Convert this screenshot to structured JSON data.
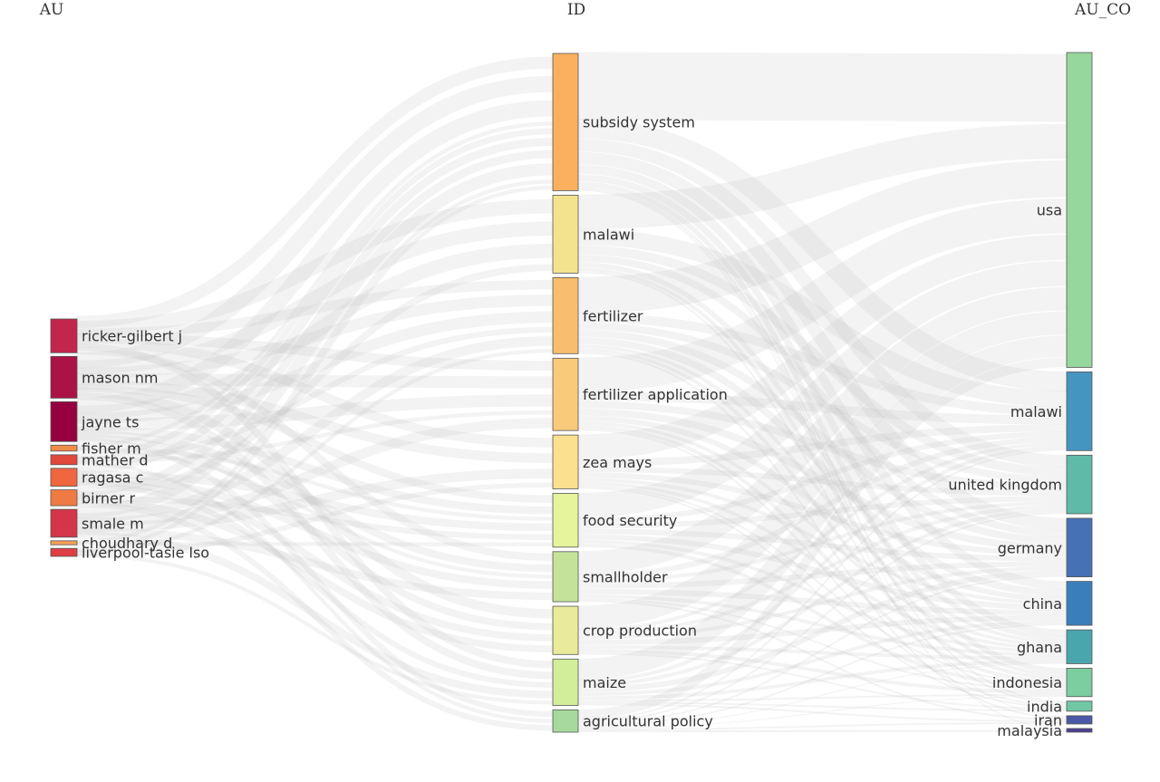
{
  "columns": [
    {
      "key": "au",
      "title": "AU"
    },
    {
      "key": "id",
      "title": "ID"
    },
    {
      "key": "au_co",
      "title": "AU_CO"
    }
  ],
  "nodes": {
    "au": [
      {
        "label": "ricker-gilbert j",
        "weight": 34,
        "color": "#c2264b"
      },
      {
        "label": "mason nm",
        "weight": 42,
        "color": "#ab1245"
      },
      {
        "label": "jayne ts",
        "weight": 40,
        "color": "#96003f"
      },
      {
        "label": "fisher m",
        "weight": 6,
        "color": "#f08c4a"
      },
      {
        "label": "mather d",
        "weight": 10,
        "color": "#e0483a"
      },
      {
        "label": "ragasa c",
        "weight": 18,
        "color": "#f0663f"
      },
      {
        "label": "birner r",
        "weight": 16,
        "color": "#f07a44"
      },
      {
        "label": "smale m",
        "weight": 28,
        "color": "#d43549"
      },
      {
        "label": "choudhary d",
        "weight": 4,
        "color": "#f5a05a"
      },
      {
        "label": "liverpool-tasie lso",
        "weight": 8,
        "color": "#de3e44"
      }
    ],
    "id": [
      {
        "label": "subsidy system",
        "weight": 148,
        "color": "#fbb05f"
      },
      {
        "label": "malawi",
        "weight": 84,
        "color": "#f3e38f"
      },
      {
        "label": "fertilizer",
        "weight": 82,
        "color": "#f8be6e"
      },
      {
        "label": "fertilizer application",
        "weight": 78,
        "color": "#f9ca7a"
      },
      {
        "label": "zea mays",
        "weight": 58,
        "color": "#fbe08f"
      },
      {
        "label": "food security",
        "weight": 58,
        "color": "#e6f49b"
      },
      {
        "label": "smallholder",
        "weight": 54,
        "color": "#c4e399"
      },
      {
        "label": "crop production",
        "weight": 52,
        "color": "#eaeb9a"
      },
      {
        "label": "maize",
        "weight": 50,
        "color": "#d3ee9a"
      },
      {
        "label": "agricultural policy",
        "weight": 24,
        "color": "#a7d99c"
      }
    ],
    "au_co": [
      {
        "label": "usa",
        "weight": 344,
        "color": "#96d79d"
      },
      {
        "label": "malawi",
        "weight": 86,
        "color": "#4495c0"
      },
      {
        "label": "united kingdom",
        "weight": 64,
        "color": "#5fbba7"
      },
      {
        "label": "germany",
        "weight": 64,
        "color": "#4671b5"
      },
      {
        "label": "china",
        "weight": 48,
        "color": "#3a7fbc"
      },
      {
        "label": "ghana",
        "weight": 37,
        "color": "#4aa6ad"
      },
      {
        "label": "indonesia",
        "weight": 31,
        "color": "#7ccda0"
      },
      {
        "label": "india",
        "weight": 11,
        "color": "#70c7a4"
      },
      {
        "label": "iran",
        "weight": 9,
        "color": "#4a58a6"
      },
      {
        "label": "malaysia",
        "weight": 4,
        "color": "#4a3f93"
      }
    ]
  },
  "links_au_id": [
    [
      0,
      0,
      6
    ],
    [
      0,
      1,
      6
    ],
    [
      0,
      2,
      5
    ],
    [
      0,
      3,
      5
    ],
    [
      0,
      4,
      4
    ],
    [
      0,
      8,
      4
    ],
    [
      0,
      6,
      4
    ],
    [
      1,
      0,
      8
    ],
    [
      1,
      1,
      6
    ],
    [
      1,
      2,
      6
    ],
    [
      1,
      3,
      6
    ],
    [
      1,
      4,
      4
    ],
    [
      1,
      5,
      4
    ],
    [
      1,
      7,
      4
    ],
    [
      1,
      8,
      4
    ],
    [
      2,
      0,
      8
    ],
    [
      2,
      1,
      6
    ],
    [
      2,
      2,
      6
    ],
    [
      2,
      3,
      6
    ],
    [
      2,
      5,
      4
    ],
    [
      2,
      6,
      4
    ],
    [
      2,
      7,
      3
    ],
    [
      2,
      9,
      3
    ],
    [
      3,
      0,
      2
    ],
    [
      3,
      5,
      2
    ],
    [
      3,
      6,
      2
    ],
    [
      4,
      0,
      3
    ],
    [
      4,
      2,
      3
    ],
    [
      4,
      3,
      2
    ],
    [
      4,
      9,
      2
    ],
    [
      5,
      0,
      4
    ],
    [
      5,
      5,
      4
    ],
    [
      5,
      6,
      4
    ],
    [
      5,
      7,
      3
    ],
    [
      5,
      8,
      3
    ],
    [
      6,
      0,
      4
    ],
    [
      6,
      1,
      3
    ],
    [
      6,
      5,
      3
    ],
    [
      6,
      7,
      3
    ],
    [
      6,
      9,
      3
    ],
    [
      7,
      0,
      6
    ],
    [
      7,
      2,
      5
    ],
    [
      7,
      3,
      5
    ],
    [
      7,
      4,
      4
    ],
    [
      7,
      6,
      4
    ],
    [
      7,
      8,
      4
    ],
    [
      8,
      0,
      2
    ],
    [
      8,
      5,
      2
    ],
    [
      9,
      0,
      2
    ],
    [
      9,
      2,
      2
    ],
    [
      9,
      4,
      2
    ],
    [
      9,
      8,
      2
    ]
  ],
  "links_id_co": [
    [
      0,
      0,
      70
    ],
    [
      0,
      1,
      22
    ],
    [
      0,
      2,
      14
    ],
    [
      0,
      3,
      14
    ],
    [
      0,
      4,
      10
    ],
    [
      0,
      5,
      8
    ],
    [
      0,
      6,
      6
    ],
    [
      0,
      7,
      2
    ],
    [
      0,
      8,
      1
    ],
    [
      0,
      9,
      1
    ],
    [
      1,
      0,
      36
    ],
    [
      1,
      1,
      18
    ],
    [
      1,
      2,
      10
    ],
    [
      1,
      3,
      8
    ],
    [
      1,
      5,
      6
    ],
    [
      1,
      6,
      4
    ],
    [
      1,
      7,
      2
    ],
    [
      2,
      0,
      38
    ],
    [
      2,
      1,
      10
    ],
    [
      2,
      2,
      8
    ],
    [
      2,
      3,
      8
    ],
    [
      2,
      4,
      8
    ],
    [
      2,
      5,
      4
    ],
    [
      2,
      6,
      4
    ],
    [
      2,
      8,
      2
    ],
    [
      3,
      0,
      36
    ],
    [
      3,
      1,
      10
    ],
    [
      3,
      2,
      8
    ],
    [
      3,
      3,
      8
    ],
    [
      3,
      4,
      6
    ],
    [
      3,
      5,
      4
    ],
    [
      3,
      6,
      4
    ],
    [
      3,
      7,
      2
    ],
    [
      4,
      0,
      26
    ],
    [
      4,
      1,
      8
    ],
    [
      4,
      2,
      6
    ],
    [
      4,
      3,
      6
    ],
    [
      4,
      4,
      4
    ],
    [
      4,
      5,
      4
    ],
    [
      4,
      6,
      2
    ],
    [
      4,
      7,
      2
    ],
    [
      5,
      0,
      26
    ],
    [
      5,
      1,
      6
    ],
    [
      5,
      2,
      6
    ],
    [
      5,
      3,
      6
    ],
    [
      5,
      4,
      6
    ],
    [
      5,
      5,
      4
    ],
    [
      5,
      6,
      4
    ],
    [
      6,
      0,
      24
    ],
    [
      6,
      1,
      6
    ],
    [
      6,
      2,
      4
    ],
    [
      6,
      3,
      6
    ],
    [
      6,
      4,
      6
    ],
    [
      6,
      5,
      4
    ],
    [
      6,
      6,
      2
    ],
    [
      6,
      8,
      2
    ],
    [
      7,
      0,
      24
    ],
    [
      7,
      1,
      4
    ],
    [
      7,
      2,
      4
    ],
    [
      7,
      3,
      4
    ],
    [
      7,
      4,
      6
    ],
    [
      7,
      5,
      4
    ],
    [
      7,
      6,
      4
    ],
    [
      7,
      7,
      2
    ],
    [
      8,
      0,
      22
    ],
    [
      8,
      1,
      4
    ],
    [
      8,
      2,
      4
    ],
    [
      8,
      3,
      6
    ],
    [
      8,
      4,
      4
    ],
    [
      8,
      5,
      4
    ],
    [
      8,
      6,
      2
    ],
    [
      8,
      7,
      2
    ],
    [
      8,
      8,
      2
    ],
    [
      9,
      0,
      10
    ],
    [
      9,
      1,
      2
    ],
    [
      9,
      2,
      2
    ],
    [
      9,
      3,
      2
    ],
    [
      9,
      4,
      2
    ],
    [
      9,
      5,
      1
    ],
    [
      9,
      6,
      1
    ],
    [
      9,
      8,
      2
    ],
    [
      9,
      9,
      2
    ]
  ]
}
